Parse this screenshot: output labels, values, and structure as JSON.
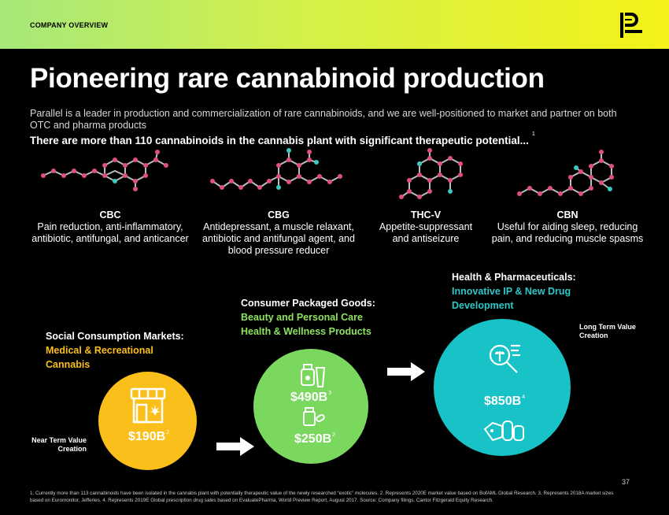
{
  "header": {
    "section_label": "COMPANY OVERVIEW"
  },
  "title": "Pioneering rare cannabinoid production",
  "intro": "Parallel is a leader in production and commercialization of rare cannabinoids, and we are well-positioned to market and partner on both OTC and pharma products",
  "headline": "There are more than 110 cannabinoids in the cannabis plant with significant therapeutic potential...",
  "headline_footnote": "1",
  "cannabinoids": [
    {
      "name": "CBC",
      "description": "Pain reduction, anti-inflammatory, antibiotic, antifungal, and anticancer"
    },
    {
      "name": "CBG",
      "description": "Antidepressant, a muscle relaxant, antibiotic and antifungal agent, and blood pressure reducer"
    },
    {
      "name": "THC-V",
      "description": "Appetite-suppressant and antiseizure"
    },
    {
      "name": "CBN",
      "description": "Useful for aiding sleep, reducing pain, and reducing muscle spasms"
    }
  ],
  "markets": {
    "social": {
      "heading": "Social Consumption Markets:",
      "line1": "Medical & Recreational",
      "line2": "Cannabis",
      "value": "$190B",
      "value_footnote": "2"
    },
    "consumer": {
      "heading": "Consumer Packaged Goods:",
      "line1": "Beauty and Personal Care",
      "line2": "Health & Wellness Products",
      "value1": "$490B",
      "value1_footnote": "3",
      "value2": "$250B",
      "value2_footnote": "2"
    },
    "health": {
      "heading": "Health & Pharmaceuticals:",
      "line1": "Innovative IP & New Drug",
      "line2": "Development",
      "value": "$850B",
      "value_footnote": "4"
    }
  },
  "near_term": {
    "line1": "Near Term Value",
    "line2": "Creation"
  },
  "long_term": {
    "line1": "Long Term Value",
    "line2": "Creation"
  },
  "page_number": "37",
  "footnote": "1. Currently more than 113 cannabinoids have been isolated in the cannabis plant with potentially therapeutic value of the newly researched “exotic” molecules. 2. Represents 2020E market value based on BofAML Global Research. 3. Represents 2018A market sizes based on Euromonitor, Jefferies. 4. Represents 2019E Global prescription drug sales based on EvaluatePharma, World Preview Report, August 2017. Source: Company filings, Cantor Fitzgerald Equity Research.",
  "colors": {
    "atom_carbon": "#e0507a",
    "atom_oxygen": "#3cc9c0",
    "social_circle": "#fbbf1c",
    "consumer_circle": "#7bd85f",
    "health_circle": "#17c3c6",
    "social_accent": "#fbbf1c",
    "consumer_accent": "#8ee25f",
    "health_accent": "#2cc7c7"
  }
}
